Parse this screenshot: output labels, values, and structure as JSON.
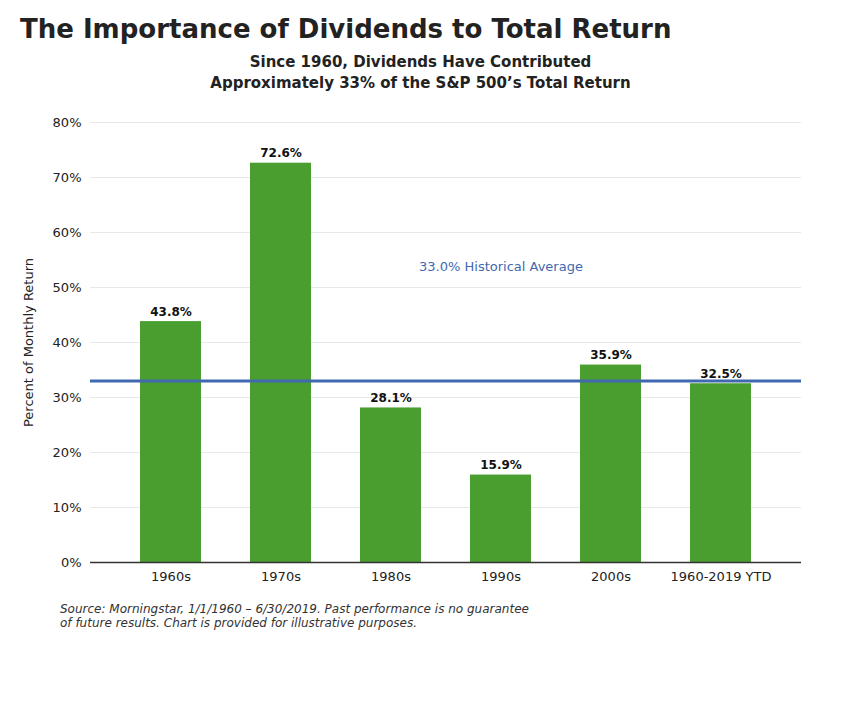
{
  "chart_data": {
    "type": "bar",
    "title": "The Importance of Dividends to Total Return",
    "subtitle": "Since 1960, Dividends Have Contributed\nApproximately 33% of the S&P 500’s Total Return",
    "footnote": "Source: Morningstar, 1/1/1960 – 6/30/2019. Past performance is no guarantee\nof future results. Chart is provided for illustrative purposes.",
    "categories": [
      "1960s",
      "1970s",
      "1980s",
      "1990s",
      "2000s",
      "1960-2019 YTD"
    ],
    "values": [
      43.8,
      72.6,
      28.1,
      15.9,
      35.9,
      32.5
    ],
    "value_labels": [
      "43.8%",
      "72.6%",
      "28.1%",
      "15.9%",
      "35.9%",
      "32.5%"
    ],
    "data_labels": true,
    "color": "#4a9e2f",
    "ylabel": "Percent of Monthly Return",
    "ylim": [
      0,
      80
    ],
    "yticks": [
      {
        "value": 0,
        "label": "0%"
      },
      {
        "value": 10,
        "label": "10%"
      },
      {
        "value": 20,
        "label": "20%"
      },
      {
        "value": 30,
        "label": "30%"
      },
      {
        "value": 40,
        "label": "40%"
      },
      {
        "value": 50,
        "label": "50%"
      },
      {
        "value": 60,
        "label": "60%"
      },
      {
        "value": 70,
        "label": "70%"
      },
      {
        "value": 80,
        "label": "80%"
      }
    ],
    "grid": true,
    "reference_line": {
      "value": 33.0,
      "label": "33.0% Historical Average",
      "color": "#4169b0"
    }
  }
}
